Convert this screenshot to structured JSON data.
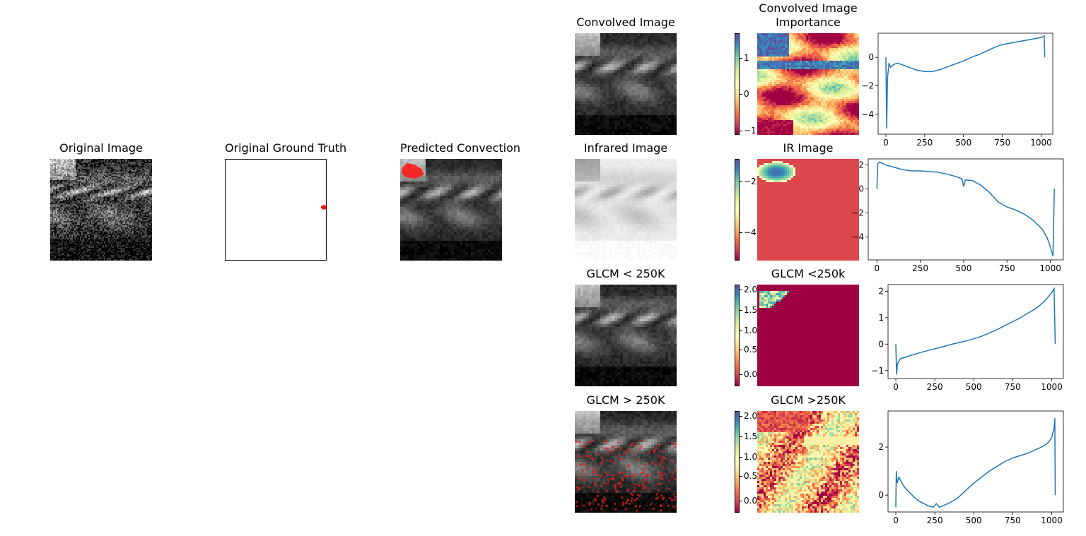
{
  "figure": {
    "left_panels": [
      {
        "id": "original",
        "title": "Original Image"
      },
      {
        "id": "ground_truth",
        "title": "Original Ground Truth"
      },
      {
        "id": "predicted",
        "title": "Predicted Convection"
      }
    ],
    "rows": [
      {
        "image_title": "Convolved Image",
        "importance_title_lines": [
          "Convolved Image",
          "Importance"
        ],
        "colorbar_ticks": [
          "1",
          "0",
          "−1"
        ],
        "plot_yticks": [
          "0",
          "−2",
          "−4"
        ],
        "plot_xticks": [
          "0",
          "250",
          "500",
          "750",
          "1000"
        ]
      },
      {
        "image_title": "Infrared Image",
        "importance_title_lines": [
          "IR Image"
        ],
        "colorbar_ticks": [
          "−2",
          "−4"
        ],
        "plot_yticks": [
          "2",
          "0",
          "−2",
          "−4"
        ],
        "plot_xticks": [
          "0",
          "250",
          "500",
          "750",
          "1000"
        ]
      },
      {
        "image_title": "GLCM < 250K",
        "importance_title_lines": [
          "GLCM <250k"
        ],
        "colorbar_ticks": [
          "2.0",
          "1.5",
          "1.0",
          "0.5",
          "0.0"
        ],
        "plot_yticks": [
          "2",
          "1",
          "0",
          "−1"
        ],
        "plot_xticks": [
          "0",
          "250",
          "500",
          "750",
          "1000"
        ]
      },
      {
        "image_title": "GLCM > 250K",
        "importance_title_lines": [
          "GLCM >250K"
        ],
        "colorbar_ticks": [
          "2.0",
          "1.5",
          "1.0",
          "0.5",
          "0.0"
        ],
        "plot_yticks": [
          "2",
          "0"
        ],
        "plot_xticks": [
          "0",
          "250",
          "500",
          "750",
          "1000"
        ]
      }
    ]
  },
  "colors": {
    "line": "#1f77b4",
    "mask_red": "#ff1a1a",
    "spectral": [
      "#9e0142",
      "#d53e4f",
      "#f46d43",
      "#fdae61",
      "#fee08b",
      "#ffffbf",
      "#e6f598",
      "#abdda4",
      "#66c2a5",
      "#3288bd",
      "#5e4fa2"
    ]
  },
  "chart_data": [
    {
      "type": "line",
      "x": [
        0,
        5,
        10,
        20,
        30,
        50,
        75,
        100,
        150,
        200,
        250,
        300,
        350,
        400,
        450,
        500,
        550,
        600,
        650,
        700,
        750,
        800,
        850,
        900,
        950,
        1000,
        1020,
        1023
      ],
      "y": [
        0,
        -5.0,
        -1.5,
        -0.4,
        -0.7,
        -0.5,
        -0.4,
        -0.5,
        -0.7,
        -0.9,
        -1.0,
        -1.0,
        -0.85,
        -0.65,
        -0.45,
        -0.25,
        0.0,
        0.2,
        0.45,
        0.7,
        0.9,
        1.0,
        1.1,
        1.2,
        1.3,
        1.4,
        1.5,
        0
      ],
      "xlim": [
        -50,
        1075
      ],
      "ylim": [
        -5.4,
        1.7
      ]
    },
    {
      "type": "line",
      "x": [
        0,
        5,
        15,
        50,
        100,
        150,
        200,
        250,
        300,
        350,
        400,
        450,
        490,
        500,
        510,
        550,
        600,
        650,
        700,
        750,
        800,
        850,
        900,
        950,
        980,
        1000,
        1015,
        1023
      ],
      "y": [
        0,
        2.1,
        2.25,
        2.0,
        1.8,
        1.6,
        1.5,
        1.5,
        1.45,
        1.4,
        1.25,
        1.05,
        0.85,
        0.2,
        0.75,
        0.7,
        0.3,
        -0.3,
        -1.1,
        -1.5,
        -1.75,
        -2.1,
        -2.6,
        -3.3,
        -4.0,
        -4.8,
        -5.6,
        0
      ],
      "xlim": [
        -50,
        1075
      ],
      "ylim": [
        -5.9,
        2.5
      ]
    },
    {
      "type": "line",
      "x": [
        0,
        5,
        10,
        30,
        60,
        100,
        150,
        200,
        250,
        300,
        350,
        400,
        450,
        500,
        550,
        600,
        650,
        700,
        750,
        800,
        850,
        900,
        950,
        980,
        1000,
        1015,
        1023
      ],
      "y": [
        0,
        -1.15,
        -0.75,
        -0.55,
        -0.5,
        -0.42,
        -0.33,
        -0.25,
        -0.18,
        -0.1,
        -0.02,
        0.05,
        0.12,
        0.2,
        0.3,
        0.42,
        0.55,
        0.7,
        0.85,
        1.0,
        1.18,
        1.35,
        1.6,
        1.8,
        1.95,
        2.1,
        0
      ],
      "xlim": [
        -50,
        1075
      ],
      "ylim": [
        -1.3,
        2.25
      ]
    },
    {
      "type": "line",
      "x": [
        0,
        3,
        8,
        20,
        35,
        60,
        90,
        120,
        150,
        180,
        210,
        240,
        260,
        280,
        300,
        350,
        400,
        450,
        500,
        550,
        600,
        650,
        700,
        750,
        800,
        850,
        900,
        950,
        980,
        1000,
        1015,
        1020,
        1023
      ],
      "y": [
        -0.5,
        1.0,
        0.5,
        0.75,
        0.55,
        0.3,
        0.1,
        -0.1,
        -0.25,
        -0.35,
        -0.45,
        -0.5,
        -0.35,
        -0.5,
        -0.45,
        -0.3,
        -0.1,
        0.2,
        0.5,
        0.75,
        1.0,
        1.2,
        1.4,
        1.55,
        1.65,
        1.75,
        1.9,
        2.05,
        2.2,
        2.4,
        2.8,
        3.2,
        0
      ],
      "xlim": [
        -50,
        1075
      ],
      "ylim": [
        -0.7,
        3.5
      ]
    }
  ]
}
